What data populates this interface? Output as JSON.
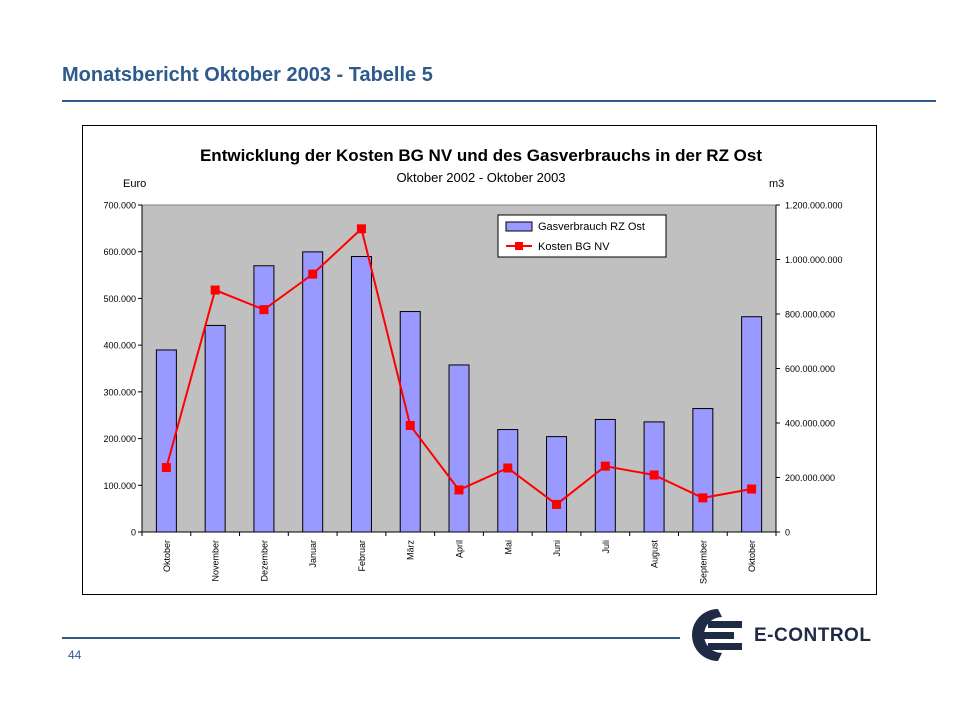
{
  "slide": {
    "title": "Monatsbericht Oktober 2003 - Tabelle 5",
    "page_number": "44"
  },
  "logo": {
    "text": "E-CONTROL",
    "color": "#1f2a44"
  },
  "chart_data": {
    "type": "bar",
    "title": "Entwicklung der Kosten BG NV und des Gasverbrauchs in der RZ Ost",
    "subtitle": "Oktober 2002 - Oktober 2003",
    "categories": [
      "Oktober",
      "November",
      "Dezember",
      "Januar",
      "Februar",
      "März",
      "April",
      "Mai",
      "Juni",
      "Juli",
      "August",
      "September",
      "Oktober"
    ],
    "ylabel_left": "Euro",
    "ylabel_right": "m3",
    "ylim_left": [
      0,
      700000
    ],
    "ylim_right": [
      0,
      1200000000
    ],
    "yticks_left": [
      "0",
      "100.000",
      "200.000",
      "300.000",
      "400.000",
      "500.000",
      "600.000",
      "700.000"
    ],
    "yticks_right": [
      "0",
      "200.000.000",
      "400.000.000",
      "600.000.000",
      "800.000.000",
      "1.000.000.000",
      "1.200.000.000"
    ],
    "series": [
      {
        "name": "Gasverbrauch RZ Ost",
        "type": "bar",
        "axis": "right",
        "color": "#9999ff",
        "values": [
          668000000,
          758000000,
          977000000,
          1028000000,
          1011000000,
          809000000,
          613000000,
          376000000,
          350000000,
          413000000,
          404000000,
          453000000,
          790000000
        ]
      },
      {
        "name": "Kosten BG NV",
        "type": "line",
        "axis": "left",
        "color": "#ff0000",
        "values": [
          138000,
          518000,
          476000,
          552000,
          649000,
          228000,
          90000,
          137000,
          59000,
          141000,
          122000,
          73000,
          92000
        ]
      }
    ],
    "legend": "top-right",
    "plot_background": "#c0c0c0",
    "grid": false
  }
}
